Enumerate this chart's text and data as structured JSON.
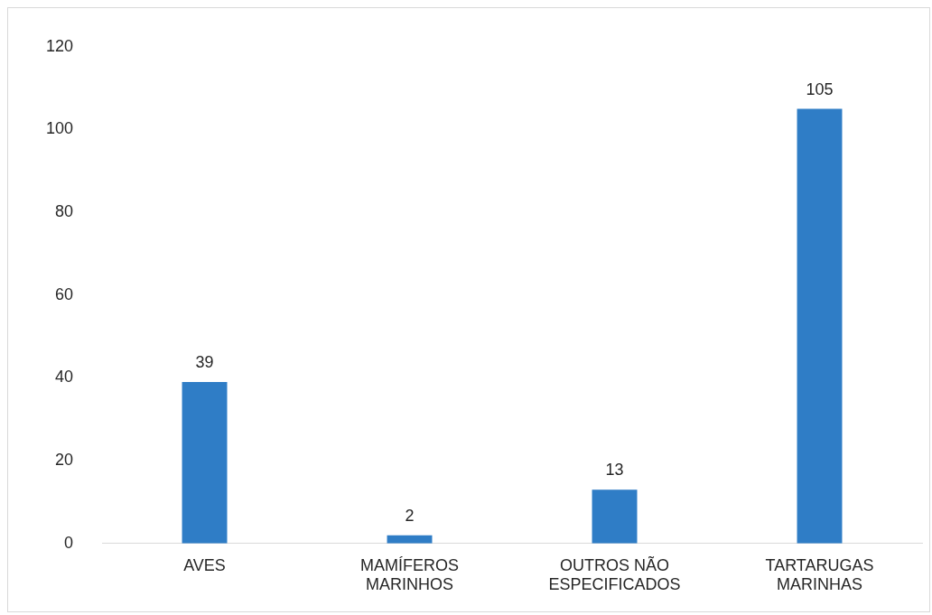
{
  "chart_data": {
    "type": "bar",
    "categories": [
      "AVES",
      "MAMÍFEROS MARINHOS",
      "OUTROS NÃO ESPECIFICADOS",
      "TARTARUGAS MARINHAS"
    ],
    "values": [
      39,
      2,
      13,
      105
    ],
    "color": "#2f7dc6",
    "ylim": [
      0,
      120
    ],
    "yticks": [
      0,
      20,
      40,
      60,
      80,
      100,
      120
    ],
    "grid": false,
    "legend": false,
    "data_labels": true
  }
}
